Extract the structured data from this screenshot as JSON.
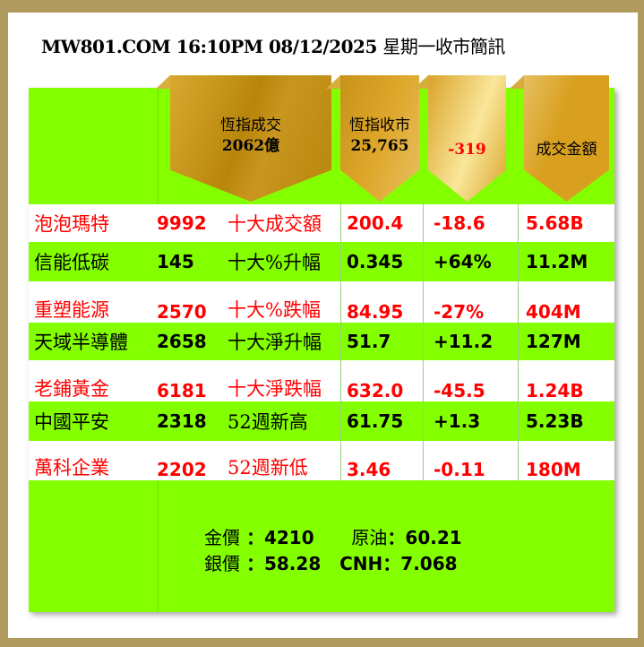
{
  "title": {
    "prefix": "MW801.COM 16:10PM  08/12/2025 ",
    "suffix": "星期一收市簡訊"
  },
  "header": [
    {
      "line1": "恆指成交",
      "line2": "2062億",
      "color": "#000000"
    },
    {
      "line1": "恆指收市",
      "line2": "25,765",
      "color": "#000000"
    },
    {
      "line1": "",
      "line2": "-319",
      "color": "#ff0000"
    },
    {
      "line1": "",
      "line2": "成交金額",
      "color": "#000000"
    }
  ],
  "rows": [
    {
      "name": "泡泡瑪特",
      "code": "9992",
      "label": "十大成交額",
      "price": "200.4",
      "change": "-18.6",
      "amount": "5.68B",
      "color": "#ff0000"
    },
    {
      "name": "信能低碳",
      "code": "145",
      "label": "十大%升幅",
      "price": "0.345",
      "change": "+64%",
      "amount": "11.2M",
      "color": "#000000"
    },
    {
      "name": "重塑能源",
      "code": "2570",
      "label": "十大%跌幅",
      "price": "84.95",
      "change": "-27%",
      "amount": "404M",
      "color": "#ff0000"
    },
    {
      "name": "天域半導體",
      "code": "2658",
      "label": "十大淨升幅",
      "price": "51.7",
      "change": "+11.2",
      "amount": "127M",
      "color": "#000000"
    },
    {
      "name": "老鋪黃金",
      "code": "6181",
      "label": "十大淨跌幅",
      "price": "632.0",
      "change": "-45.5",
      "amount": "1.24B",
      "color": "#ff0000"
    },
    {
      "name": "中國平安",
      "code": "2318",
      "label": "52週新高",
      "price": "61.75",
      "change": "+1.3",
      "amount": "5.23B",
      "color": "#000000"
    },
    {
      "name": "萬科企業",
      "code": "2202",
      "label": "52週新低",
      "price": "3.46",
      "change": "-0.11",
      "amount": "180M",
      "color": "#ff0000"
    }
  ],
  "commodities": {
    "gold_label": "金價",
    "gold_value": "4210",
    "oil_label": "原油",
    "oil_value": "60.21",
    "silver_label": "銀價",
    "silver_value": "58.28",
    "cnh_label": "CNH",
    "cnh_value": "7.068"
  },
  "colors": {
    "frame": "#b09a5e",
    "panel": "#84ff00",
    "up_text": "#000000",
    "down_text": "#ff0000"
  }
}
